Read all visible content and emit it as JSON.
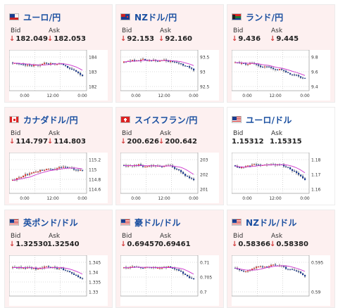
{
  "arrow": "↓",
  "colors": {
    "pair_text": "#1a4fa0",
    "down_arrow": "#d23c3c",
    "candle_up": "#d9302a",
    "candle_down": "#1b3a8f",
    "ma_line": "#cc33cc",
    "card_pink": "#fdf0f0"
  },
  "bid_label": "Bid",
  "ask_label": "Ask",
  "cards": [
    {
      "pair": "ユーロ/円",
      "flag": "eu",
      "bid": "182.049",
      "ask": "182.053",
      "bid_arrow": true,
      "ask_arrow": true,
      "chart": {
        "type": "candlestick",
        "x_ticks": [
          "0:00",
          "12:00",
          "0:00"
        ],
        "y_ticks": [
          "184",
          "183",
          "182"
        ],
        "trend": "down"
      }
    },
    {
      "pair": "NZドル/円",
      "flag": "nz",
      "bid": "92.153",
      "ask": "92.160",
      "bid_arrow": true,
      "ask_arrow": true,
      "chart": {
        "type": "candlestick",
        "x_ticks": [
          "0:00",
          "12:00",
          "0:00"
        ],
        "y_ticks": [
          "93.5",
          "93",
          "92.5"
        ],
        "trend": "down"
      }
    },
    {
      "pair": "ランド/円",
      "flag": "za",
      "bid": "9.436",
      "ask": "9.445",
      "bid_arrow": true,
      "ask_arrow": true,
      "chart": {
        "type": "candlestick",
        "x_ticks": [
          "0:00",
          "12:00",
          "0:00"
        ],
        "y_ticks": [
          "9.8",
          "9.6",
          "9.4"
        ],
        "trend": "down"
      }
    },
    {
      "pair": "カナダドル/円",
      "flag": "ca",
      "bid": "114.797",
      "ask": "114.803",
      "bid_arrow": true,
      "ask_arrow": true,
      "chart": {
        "type": "candlestick",
        "x_ticks": [
          "0:00",
          "12:00",
          "0:00"
        ],
        "y_ticks": [
          "115.2",
          "115",
          "114.8",
          "114.6"
        ],
        "trend": "up"
      }
    },
    {
      "pair": "スイスフラン/円",
      "flag": "ch",
      "bid": "200.626",
      "ask": "200.642",
      "bid_arrow": true,
      "ask_arrow": true,
      "chart": {
        "type": "candlestick",
        "x_ticks": [
          "0:00",
          "12:00",
          "0:00"
        ],
        "y_ticks": [
          "203",
          "202",
          "201"
        ],
        "trend": "down"
      }
    },
    {
      "pair": "ユーロ/ドル",
      "flag": "us",
      "bid": "1.15312",
      "ask": "1.15315",
      "bid_arrow": false,
      "ask_arrow": false,
      "chart": {
        "type": "candlestick",
        "x_ticks": [
          "0:00",
          "12:00",
          "0:00"
        ],
        "y_ticks": [
          "1.18",
          "1.17",
          "1.16"
        ],
        "trend": "down"
      }
    },
    {
      "pair": "英ポンド/ドル",
      "flag": "us",
      "bid": "1.32530",
      "ask": "1.32540",
      "bid_arrow": true,
      "ask_arrow": false,
      "chart": {
        "type": "candlestick",
        "x_ticks": [],
        "y_ticks": [
          "1.345",
          "1.34",
          "1.335",
          "1.33"
        ],
        "trend": "down"
      }
    },
    {
      "pair": "豪ドル/ドル",
      "flag": "us",
      "bid": "0.69457",
      "ask": "0.69461",
      "bid_arrow": true,
      "ask_arrow": false,
      "chart": {
        "type": "candlestick",
        "x_ticks": [],
        "y_ticks": [
          "0.71",
          "0.705",
          "0.7"
        ],
        "trend": "down"
      }
    },
    {
      "pair": "NZドル/ドル",
      "flag": "us",
      "bid": "0.58366",
      "ask": "0.58380",
      "bid_arrow": true,
      "ask_arrow": true,
      "chart": {
        "type": "candlestick",
        "x_ticks": [],
        "y_ticks": [
          "0.595",
          "0.59"
        ],
        "trend": "down"
      }
    }
  ]
}
